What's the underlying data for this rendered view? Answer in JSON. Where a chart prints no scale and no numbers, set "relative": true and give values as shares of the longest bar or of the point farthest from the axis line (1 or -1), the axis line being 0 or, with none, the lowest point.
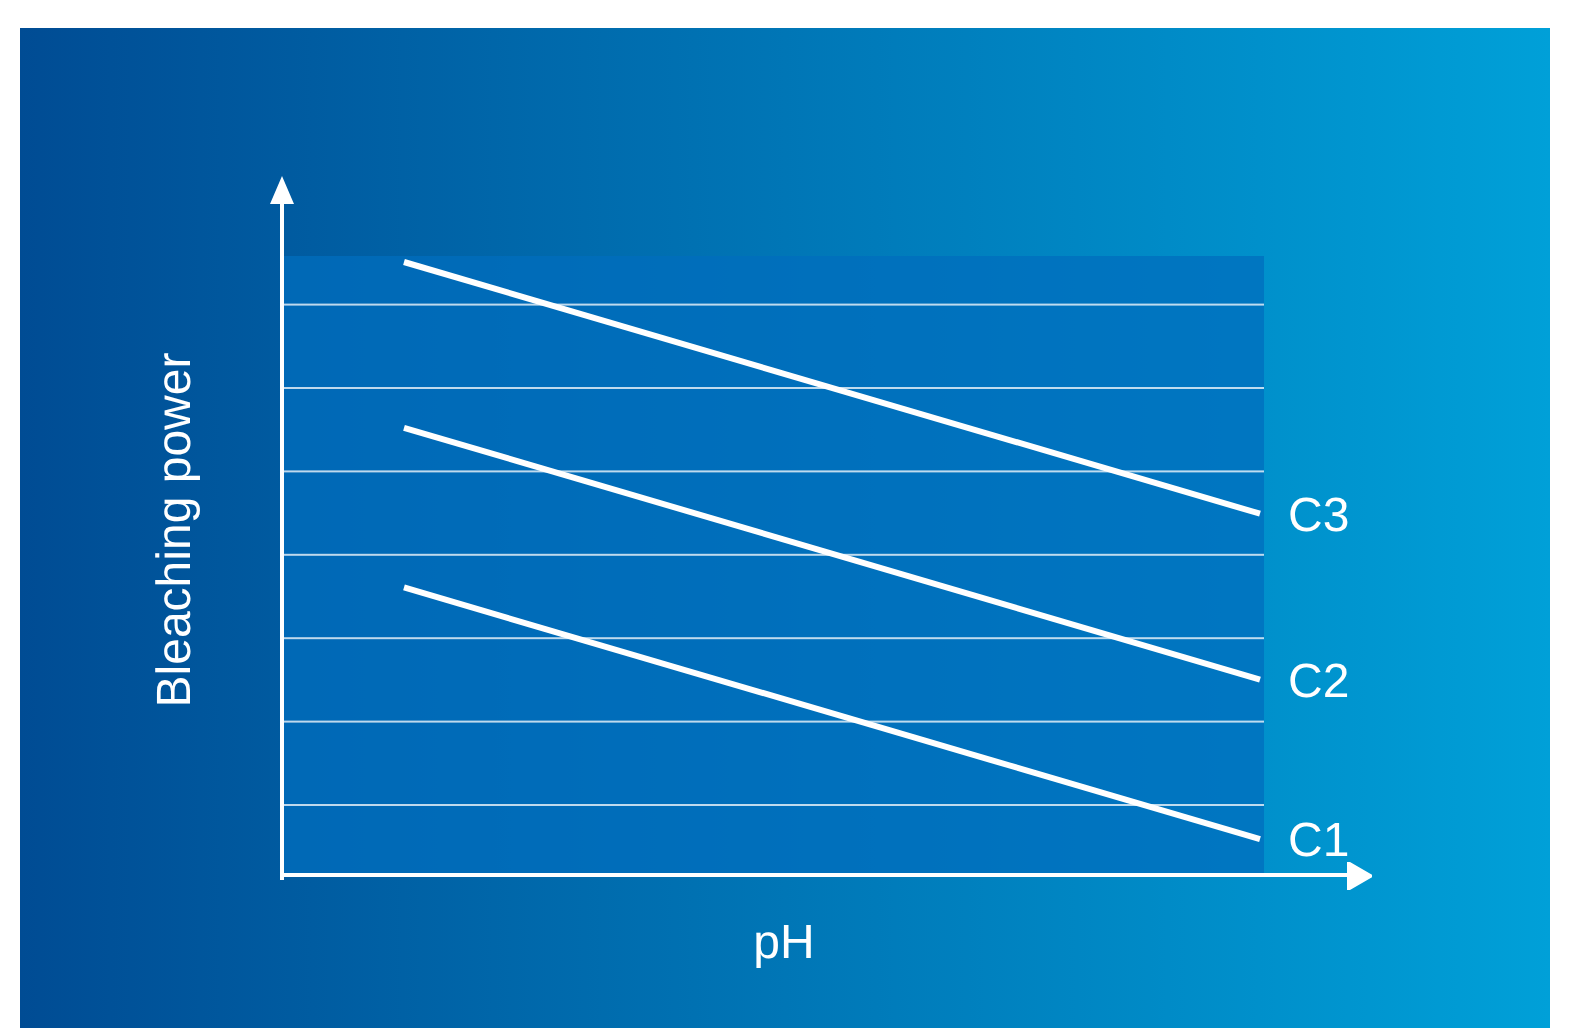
{
  "chart_data": {
    "type": "line",
    "xlabel": "pH",
    "ylabel": "Bleaching power",
    "relative": true,
    "marker": "none",
    "categories": [
      null,
      null
    ],
    "series": [
      {
        "name": "C1",
        "color": "#ffffff",
        "values": [
          0.47,
          0.06
        ]
      },
      {
        "name": "C2",
        "color": "#ffffff",
        "values": [
          0.73,
          0.32
        ]
      },
      {
        "name": "C3",
        "color": "#ffffff",
        "values": [
          1,
          0.59
        ]
      }
    ]
  }
}
